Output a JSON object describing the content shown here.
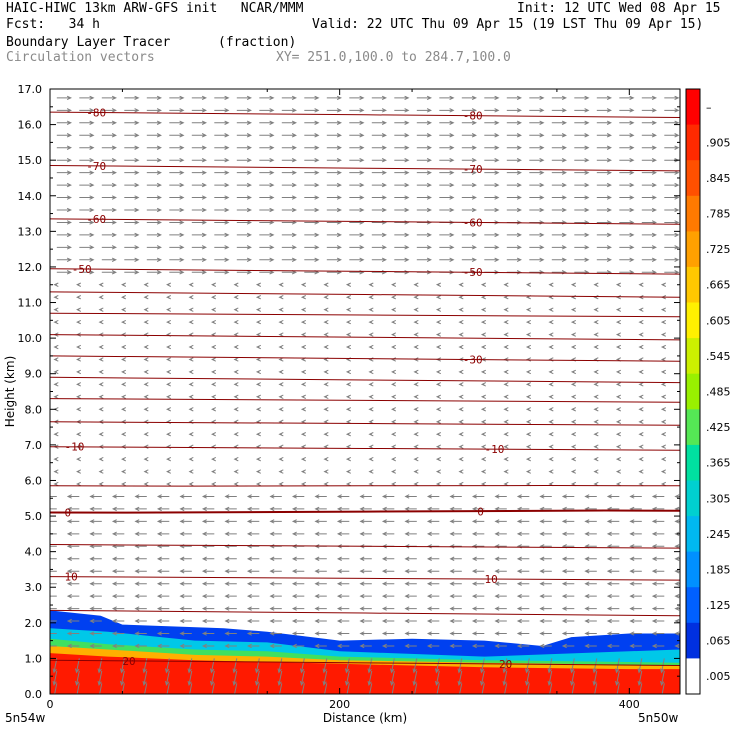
{
  "header": {
    "line1_left": "HAIC-HIWC 13km ARW-GFS init   NCAR/MMM",
    "line1_right": "Init: 12 UTC Wed 08 Apr 15",
    "line2_left": "Fcst:   34 h",
    "line2_right": "Valid: 22 UTC Thu 09 Apr 15 (19 LST Thu 09 Apr 15)",
    "line3_left": "Boundary Layer Tracer",
    "line3_unit": "(fraction)",
    "line4_left": "Circulation vectors",
    "line4_xy": "XY= 251.0,100.0 to 284.7,100.0"
  },
  "chart_data": {
    "type": "heatmap",
    "title": "Boundary Layer Tracer",
    "units": "(fraction)",
    "xlabel": "Distance (km)",
    "ylabel": "Height (km)",
    "xlim": [
      0,
      435
    ],
    "ylim": [
      0,
      17
    ],
    "x_ticks": [
      0,
      200,
      400
    ],
    "x_tick_labels": [
      "0",
      "200",
      "400"
    ],
    "x_endpoints": [
      "5n54w",
      "5n50w"
    ],
    "y_ticks": [
      0.0,
      1.0,
      2.0,
      3.0,
      4.0,
      5.0,
      6.0,
      7.0,
      8.0,
      9.0,
      10.0,
      11.0,
      12.0,
      13.0,
      14.0,
      15.0,
      16.0,
      17.0
    ],
    "y_tick_labels": [
      "0.0",
      "1.0",
      "2.0",
      "3.0",
      "4.0",
      "5.0",
      "6.0",
      "7.0",
      "8.0",
      "9.0",
      "10.0",
      "11.0",
      "12.0",
      "13.0",
      "14.0",
      "15.0",
      "16.0",
      "17.0"
    ],
    "colorbar": {
      "labels": [
        "–",
        ".905",
        ".845",
        ".785",
        ".725",
        ".665",
        ".605",
        ".545",
        ".485",
        ".425",
        ".365",
        ".305",
        ".245",
        ".185",
        ".125",
        ".065",
        ".005"
      ],
      "colors": [
        "#ff0000",
        "#ff2a00",
        "#ff5000",
        "#ff7a00",
        "#ffa000",
        "#ffc800",
        "#fff000",
        "#ccf000",
        "#99f000",
        "#55e855",
        "#00e0a0",
        "#00d0d0",
        "#00b8f0",
        "#0090ff",
        "#0060ff",
        "#0030e0",
        "#ffffff"
      ]
    },
    "tracer_layers": [
      {
        "level": "red",
        "color": "#ff1a00",
        "top_km": [
          {
            "x": 0,
            "h": 1.15
          },
          {
            "x": 40,
            "h": 1.05
          },
          {
            "x": 100,
            "h": 0.95
          },
          {
            "x": 150,
            "h": 0.9
          },
          {
            "x": 200,
            "h": 0.85
          },
          {
            "x": 300,
            "h": 0.75
          },
          {
            "x": 400,
            "h": 0.7
          },
          {
            "x": 435,
            "h": 0.7
          }
        ]
      },
      {
        "level": "orange-yellow",
        "color": "#ffb000",
        "top_km": [
          {
            "x": 0,
            "h": 1.35
          },
          {
            "x": 40,
            "h": 1.25
          },
          {
            "x": 100,
            "h": 1.1
          },
          {
            "x": 150,
            "h": 1.05
          },
          {
            "x": 200,
            "h": 0.95
          },
          {
            "x": 300,
            "h": 0.88
          },
          {
            "x": 400,
            "h": 0.82
          },
          {
            "x": 435,
            "h": 0.8
          }
        ]
      },
      {
        "level": "green",
        "color": "#40e060",
        "top_km": [
          {
            "x": 0,
            "h": 1.55
          },
          {
            "x": 40,
            "h": 1.4
          },
          {
            "x": 100,
            "h": 1.25
          },
          {
            "x": 150,
            "h": 1.2
          },
          {
            "x": 200,
            "h": 1.05
          },
          {
            "x": 300,
            "h": 0.95
          },
          {
            "x": 400,
            "h": 0.9
          },
          {
            "x": 435,
            "h": 0.88
          }
        ]
      },
      {
        "level": "cyan",
        "color": "#00c8e8",
        "top_km": [
          {
            "x": 0,
            "h": 1.85
          },
          {
            "x": 40,
            "h": 1.75
          },
          {
            "x": 100,
            "h": 1.5
          },
          {
            "x": 150,
            "h": 1.45
          },
          {
            "x": 200,
            "h": 1.2
          },
          {
            "x": 300,
            "h": 1.05
          },
          {
            "x": 400,
            "h": 1.2
          },
          {
            "x": 435,
            "h": 1.25
          }
        ]
      },
      {
        "level": "blue",
        "color": "#0040f0",
        "top_km": [
          {
            "x": 0,
            "h": 2.35
          },
          {
            "x": 35,
            "h": 2.2
          },
          {
            "x": 50,
            "h": 1.95
          },
          {
            "x": 120,
            "h": 1.85
          },
          {
            "x": 150,
            "h": 1.75
          },
          {
            "x": 200,
            "h": 1.5
          },
          {
            "x": 250,
            "h": 1.55
          },
          {
            "x": 300,
            "h": 1.5
          },
          {
            "x": 340,
            "h": 1.35
          },
          {
            "x": 360,
            "h": 1.6
          },
          {
            "x": 400,
            "h": 1.7
          },
          {
            "x": 435,
            "h": 1.7
          }
        ]
      }
    ],
    "temperature_contours": [
      {
        "label": "-80",
        "y_left": 16.35,
        "y_right": 16.2,
        "label_x": [
          25,
          285
        ]
      },
      {
        "label": "-70",
        "y_left": 14.85,
        "y_right": 14.7,
        "label_x": [
          25,
          285
        ]
      },
      {
        "label": "-60",
        "y_left": 13.35,
        "y_right": 13.2,
        "label_x": [
          25,
          285
        ]
      },
      {
        "label": "-50",
        "y_left": 11.95,
        "y_right": 11.8,
        "label_x": [
          15,
          285
        ]
      },
      {
        "label": "",
        "y_left": 11.3,
        "y_right": 11.15,
        "label_x": []
      },
      {
        "label": "",
        "y_left": 10.7,
        "y_right": 10.6,
        "label_x": []
      },
      {
        "label": "",
        "y_left": 10.1,
        "y_right": 9.95,
        "label_x": []
      },
      {
        "label": "-30",
        "y_left": 9.5,
        "y_right": 9.35,
        "label_x": [
          285
        ]
      },
      {
        "label": "",
        "y_left": 8.9,
        "y_right": 8.75,
        "label_x": []
      },
      {
        "label": "",
        "y_left": 8.3,
        "y_right": 8.2,
        "label_x": []
      },
      {
        "label": "",
        "y_left": 7.65,
        "y_right": 7.55,
        "label_x": []
      },
      {
        "label": "-10",
        "y_left": 6.95,
        "y_right": 6.85,
        "label_x": [
          10,
          300
        ]
      },
      {
        "label": "",
        "y_left": 5.85,
        "y_right": 5.85,
        "label_x": []
      },
      {
        "label": "0",
        "y_left": 5.1,
        "y_right": 5.15,
        "label_x": [
          10,
          295
        ]
      },
      {
        "label": "",
        "y_left": 4.2,
        "y_right": 4.1,
        "label_x": []
      },
      {
        "label": "10",
        "y_left": 3.3,
        "y_right": 3.2,
        "label_x": [
          10,
          300
        ]
      },
      {
        "label": "",
        "y_left": 2.35,
        "y_right": 2.2,
        "label_x": []
      },
      {
        "label": "20",
        "y_left": 0.95,
        "y_right": 0.8,
        "label_x": [
          50,
          310
        ]
      }
    ],
    "vectors": {
      "upper": {
        "u": 1.0,
        "w": 0.0
      },
      "middle": {
        "u": -0.15,
        "w": 0.0
      },
      "lower": {
        "u": -0.8,
        "w": 0.0
      },
      "boundary_layer": {
        "u": -0.2,
        "w": -1.0
      }
    }
  },
  "colors": {
    "contour": "#8b0000",
    "vector": "#808080",
    "axis": "#000000"
  }
}
